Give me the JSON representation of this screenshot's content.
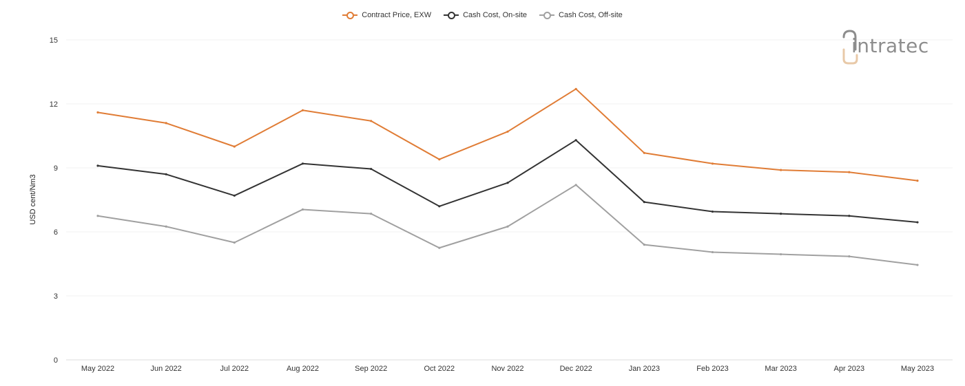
{
  "chart_data": {
    "type": "line",
    "title": "",
    "xlabel": "",
    "ylabel": "USD cent/Nm3",
    "ylim": [
      0,
      15
    ],
    "yticks": [
      0,
      3,
      6,
      9,
      12,
      15
    ],
    "grid": true,
    "legend_position": "top-center",
    "categories": [
      "May 2022",
      "Jun 2022",
      "Jul 2022",
      "Aug 2022",
      "Sep 2022",
      "Oct 2022",
      "Nov 2022",
      "Dec 2022",
      "Jan 2023",
      "Feb 2023",
      "Mar 2023",
      "Apr 2023",
      "May 2023"
    ],
    "series": [
      {
        "name": "Contract Price, EXW",
        "color": "#e07c35",
        "values": [
          11.6,
          11.1,
          10.0,
          11.7,
          11.2,
          9.4,
          10.7,
          12.7,
          9.7,
          9.2,
          8.9,
          8.8,
          8.4
        ]
      },
      {
        "name": "Cash Cost, On-site",
        "color": "#333333",
        "values": [
          9.1,
          8.7,
          7.7,
          9.2,
          8.95,
          7.2,
          8.3,
          10.3,
          7.4,
          6.95,
          6.85,
          6.75,
          6.45
        ]
      },
      {
        "name": "Cash Cost, Off-site",
        "color": "#a0a0a0",
        "values": [
          6.75,
          6.25,
          5.5,
          7.05,
          6.85,
          5.25,
          6.25,
          8.2,
          5.4,
          5.05,
          4.95,
          4.85,
          4.45
        ]
      }
    ]
  },
  "logo": {
    "text": "intratec",
    "color": "#8d8d8d",
    "accent": "#e8c9a8"
  }
}
